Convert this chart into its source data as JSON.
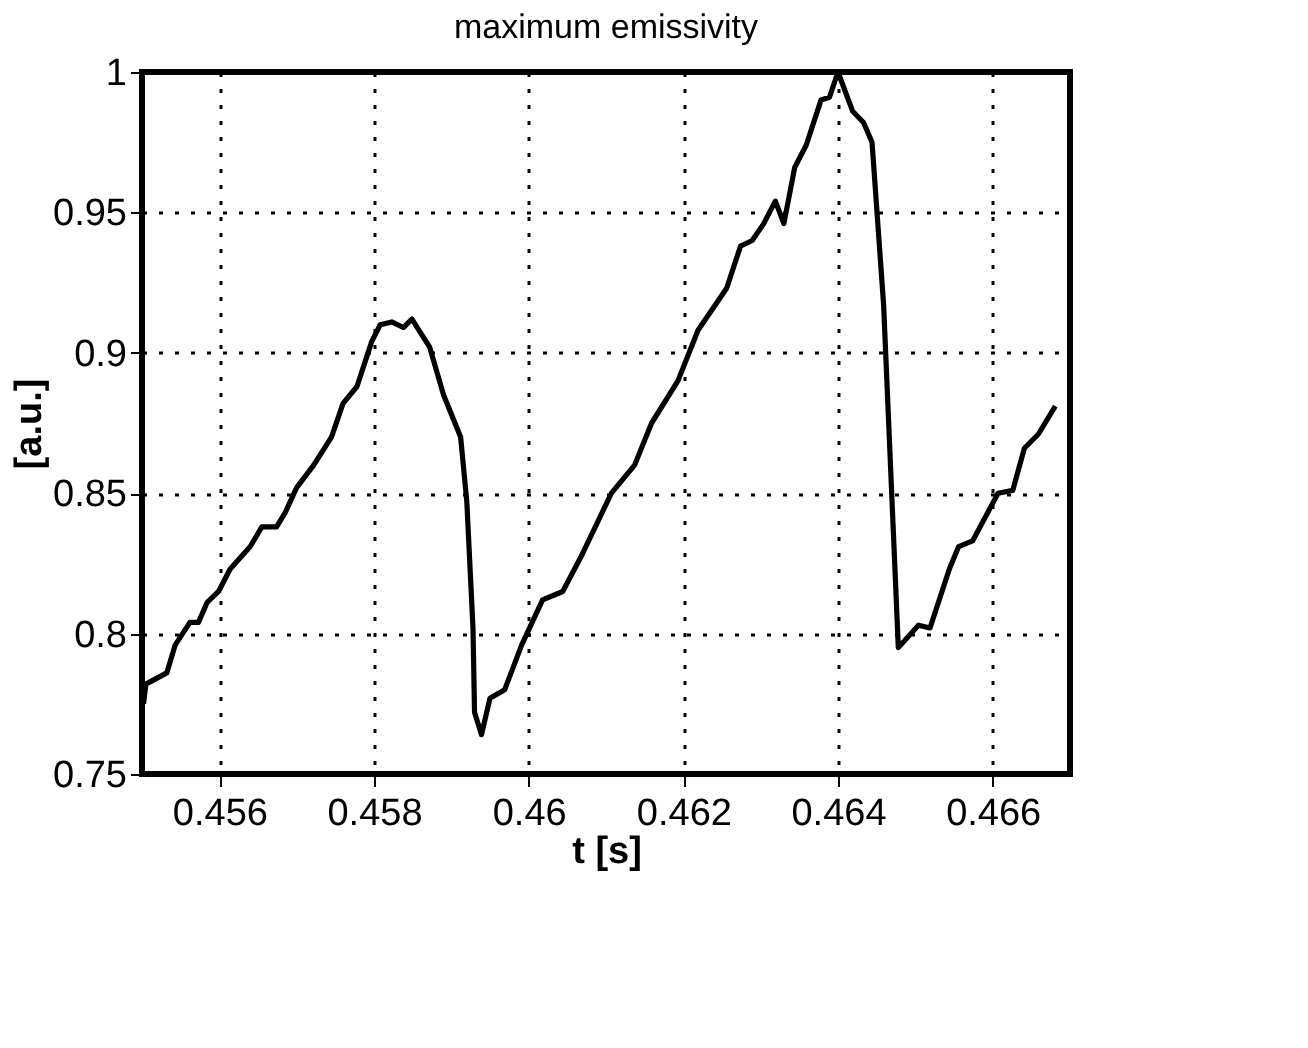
{
  "chart_data": {
    "type": "line",
    "title": "maximum emissivity",
    "xlabel": "t [s]",
    "ylabel": "[a.u.]",
    "x": [
      0.45502,
      0.45505,
      0.45532,
      0.45543,
      0.45562,
      0.45573,
      0.45584,
      0.45599,
      0.45614,
      0.4564,
      0.45655,
      0.45674,
      0.45685,
      0.457,
      0.45722,
      0.45745,
      0.4576,
      0.45778,
      0.45797,
      0.45808,
      0.45823,
      0.45838,
      0.45849,
      0.45872,
      0.4589,
      0.45912,
      0.4592,
      0.45928,
      0.4593,
      0.45939,
      0.4595,
      0.45969,
      0.45991,
      0.46018,
      0.46044,
      0.46067,
      0.46107,
      0.46137,
      0.46159,
      0.46193,
      0.46219,
      0.46256,
      0.46274,
      0.46289,
      0.46304,
      0.46319,
      0.4633,
      0.46344,
      0.46359,
      0.46378,
      0.46389,
      0.464,
      0.46419,
      0.46433,
      0.46444,
      0.46459,
      0.46478,
      0.46504,
      0.46519,
      0.46544,
      0.46556,
      0.46574,
      0.46607,
      0.46626,
      0.46641,
      0.46659,
      0.46681
    ],
    "series": [
      {
        "color": "#000000",
        "values": [
          0.775,
          0.782,
          0.786,
          0.796,
          0.804,
          0.804,
          0.811,
          0.815,
          0.823,
          0.831,
          0.838,
          0.838,
          0.843,
          0.852,
          0.86,
          0.87,
          0.882,
          0.888,
          0.904,
          0.91,
          0.911,
          0.909,
          0.912,
          0.902,
          0.885,
          0.87,
          0.847,
          0.802,
          0.772,
          0.764,
          0.777,
          0.78,
          0.796,
          0.812,
          0.815,
          0.827,
          0.85,
          0.86,
          0.875,
          0.89,
          0.908,
          0.923,
          0.938,
          0.94,
          0.946,
          0.954,
          0.946,
          0.966,
          0.974,
          0.99,
          0.991,
          1.0,
          0.986,
          0.982,
          0.975,
          0.917,
          0.795,
          0.803,
          0.802,
          0.823,
          0.831,
          0.833,
          0.85,
          0.851,
          0.866,
          0.871,
          0.881
        ]
      }
    ],
    "xlim": [
      0.455,
      0.467
    ],
    "xticks": [
      0.456,
      0.458,
      0.46,
      0.462,
      0.464,
      0.466
    ],
    "ylim": [
      0.75,
      1
    ],
    "yticks": [
      0.75,
      0.8,
      0.85,
      0.9,
      0.95,
      1
    ],
    "grid": true,
    "line_style": "solid"
  }
}
